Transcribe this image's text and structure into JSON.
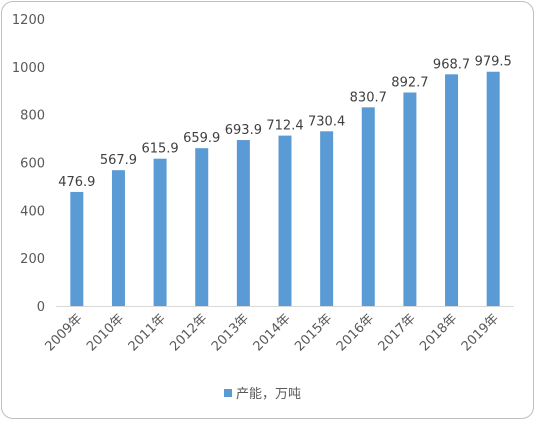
{
  "chart_data": {
    "type": "bar",
    "categories": [
      "2009年",
      "2010年",
      "2011年",
      "2012年",
      "2013年",
      "2014年",
      "2015年",
      "2016年",
      "2017年",
      "2018年",
      "2019年"
    ],
    "series": [
      {
        "name": "产能，万吨",
        "values": [
          476.9,
          567.9,
          615.9,
          659.9,
          693.9,
          712.4,
          730.4,
          830.7,
          892.7,
          968.7,
          979.5
        ],
        "labels": [
          "476.9",
          "567.9",
          "615.9",
          "659.9",
          "693.9",
          "712.4",
          "730.4",
          "830.7",
          "892.7",
          "968.7",
          "979.5"
        ],
        "color": "#5b9bd5"
      }
    ],
    "ylim": [
      0,
      1200
    ],
    "yticks": [
      "0",
      "200",
      "400",
      "600",
      "800",
      "1000",
      "1200"
    ],
    "grid": false,
    "legend": "bottom"
  }
}
